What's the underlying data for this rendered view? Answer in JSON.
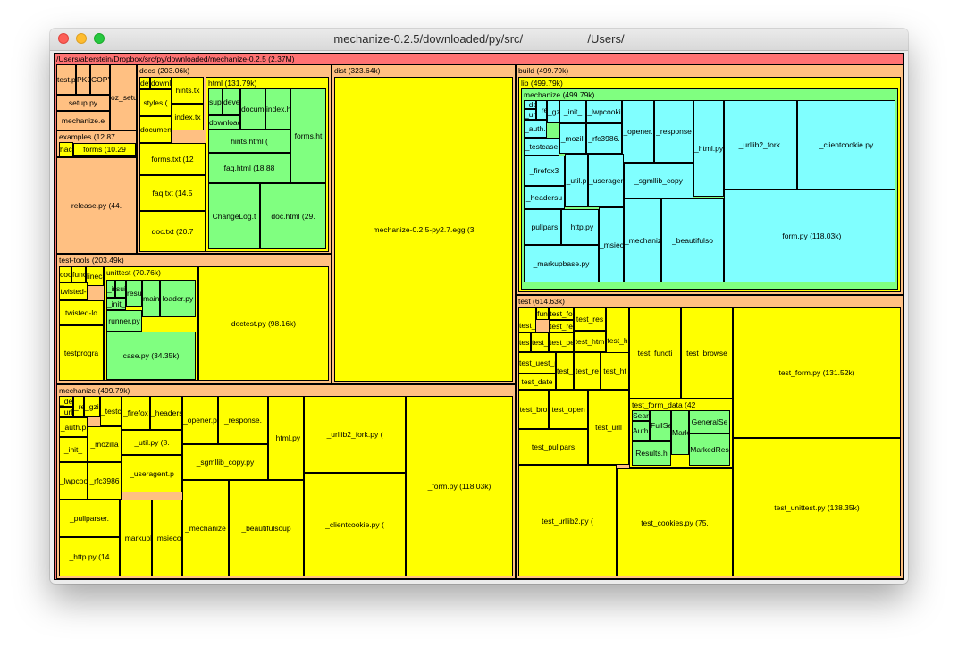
{
  "window": {
    "title_left": "mechanize-0.2.5/downloaded/py/src/",
    "title_right": "/Users/"
  },
  "colors": {
    "root": "#ff7373",
    "directory": "#ffc082",
    "file": "#ffff00",
    "nested_directory": "#80ff80",
    "deep_directory": "#80ffff"
  },
  "treemap": {
    "root": "/Users/aberstein/Dropbox/src/py/downloaded/mechanize-0.2.5 (2.37M)",
    "top_files": [
      "test.p",
      "PKG-I",
      "COPYIN",
      "oz_setu",
      "setup.py",
      "mechanize.e",
      "release.py (44."
    ],
    "examples": {
      "label": "examples (12.87",
      "hacks": "hacks",
      "forms": "forms (10.29"
    },
    "docs": {
      "label": "docs (203.06k)",
      "files": [
        "dev",
        "downl",
        "hints.tx",
        "styles (",
        "index.tx",
        "document",
        "forms.txt (12",
        "faq.txt (14.5",
        "doc.txt (20.7"
      ],
      "html": {
        "label": "html (131.79k)",
        "files": [
          "suppo",
          "develo",
          "documen",
          "download",
          "index.h",
          "forms.ht",
          "hints.html (",
          "faq.html (18.88",
          "ChangeLog.t",
          "doc.html (29."
        ]
      }
    },
    "dist": {
      "label": "dist (323.64k)",
      "egg": "mechanize-0.2.5-py2.7.egg (3"
    },
    "test_tools": {
      "label": "test-tools (203.49k)",
      "files": [
        "cookie",
        "functio",
        "lineca",
        "twisted-",
        "twisted-lo",
        "testprogra",
        "doctest.py (98.16k)"
      ],
      "unittest": {
        "label": "unittest (70.76k)",
        "files": [
          "_init_",
          "suite.",
          "result",
          "_init_",
          "main.py",
          "loader.py",
          "runner.py",
          "case.py (34.35k)"
        ]
      }
    },
    "mechanize_pkg": {
      "label": "mechanize (499.79k)",
      "files": [
        "_debu",
        "_urllib",
        "_req",
        "_gzip",
        "_testca",
        "_auth.p",
        "_firefox",
        "_headers",
        "_init_",
        "_mozilla",
        "_util.py (8.",
        "_lwpcook",
        "_rfc3986",
        "_useragent.p",
        "_opener.p",
        "_response.",
        "_sgmllib_copy.py",
        "_html.py",
        "_urllib2_fork.py (",
        "_form.py (118.03k)",
        "_pullparser.",
        "_markupb",
        "_msiecoo",
        "_http.py (14",
        "_mechanize",
        "_beautifulsoup",
        "_clientcookie.py ("
      ]
    },
    "build": {
      "label": "build (499.79k)",
      "lib": {
        "label": "lib (499.79k)",
        "mechanize": {
          "label": "mechanize (499.79k)",
          "files": [
            "_debu",
            "_urll",
            "_req",
            "_gzip",
            "_init_",
            "_lwpcooki",
            "_auth.p",
            "_testcase",
            "_mozill",
            "_rfc3986.",
            "_opener.",
            "_response",
            "_html.py",
            "_urllib2_fork.",
            "_clientcookie.py",
            "_firefox3",
            "_util.p",
            "_useragen",
            "_sgmllib_copy",
            "_headersu",
            "_pullpars",
            "_http.py",
            "_msieco",
            "_mechaniz",
            "_beautifulso",
            "_form.py (118.03k)",
            "_markupbase.py"
          ]
        }
      }
    },
    "test": {
      "label": "test (614.63k)",
      "files": [
        "test_a",
        "fun",
        "test_fo",
        "test_res",
        "test_re",
        "test_h",
        "test_functi",
        "test_browse",
        "test_",
        "test_c",
        "test_pe",
        "test_htm",
        "test_uest_r",
        "test_p",
        "test_re",
        "test_ht",
        "test_date",
        "test_bro",
        "test_open",
        "test_urll",
        "test_pullpars",
        "test_form.py (131.52k)",
        "test_urllib2.py (",
        "test_cookies.py (75.",
        "test_unittest.py (138.35k)"
      ],
      "test_form_data": {
        "label": "test_form_data (42",
        "files": [
          "Search",
          "FullSea",
          "Auth.h",
          "Marke",
          "GeneralSe",
          "MarkedRes",
          "Results.h"
        ]
      }
    }
  }
}
